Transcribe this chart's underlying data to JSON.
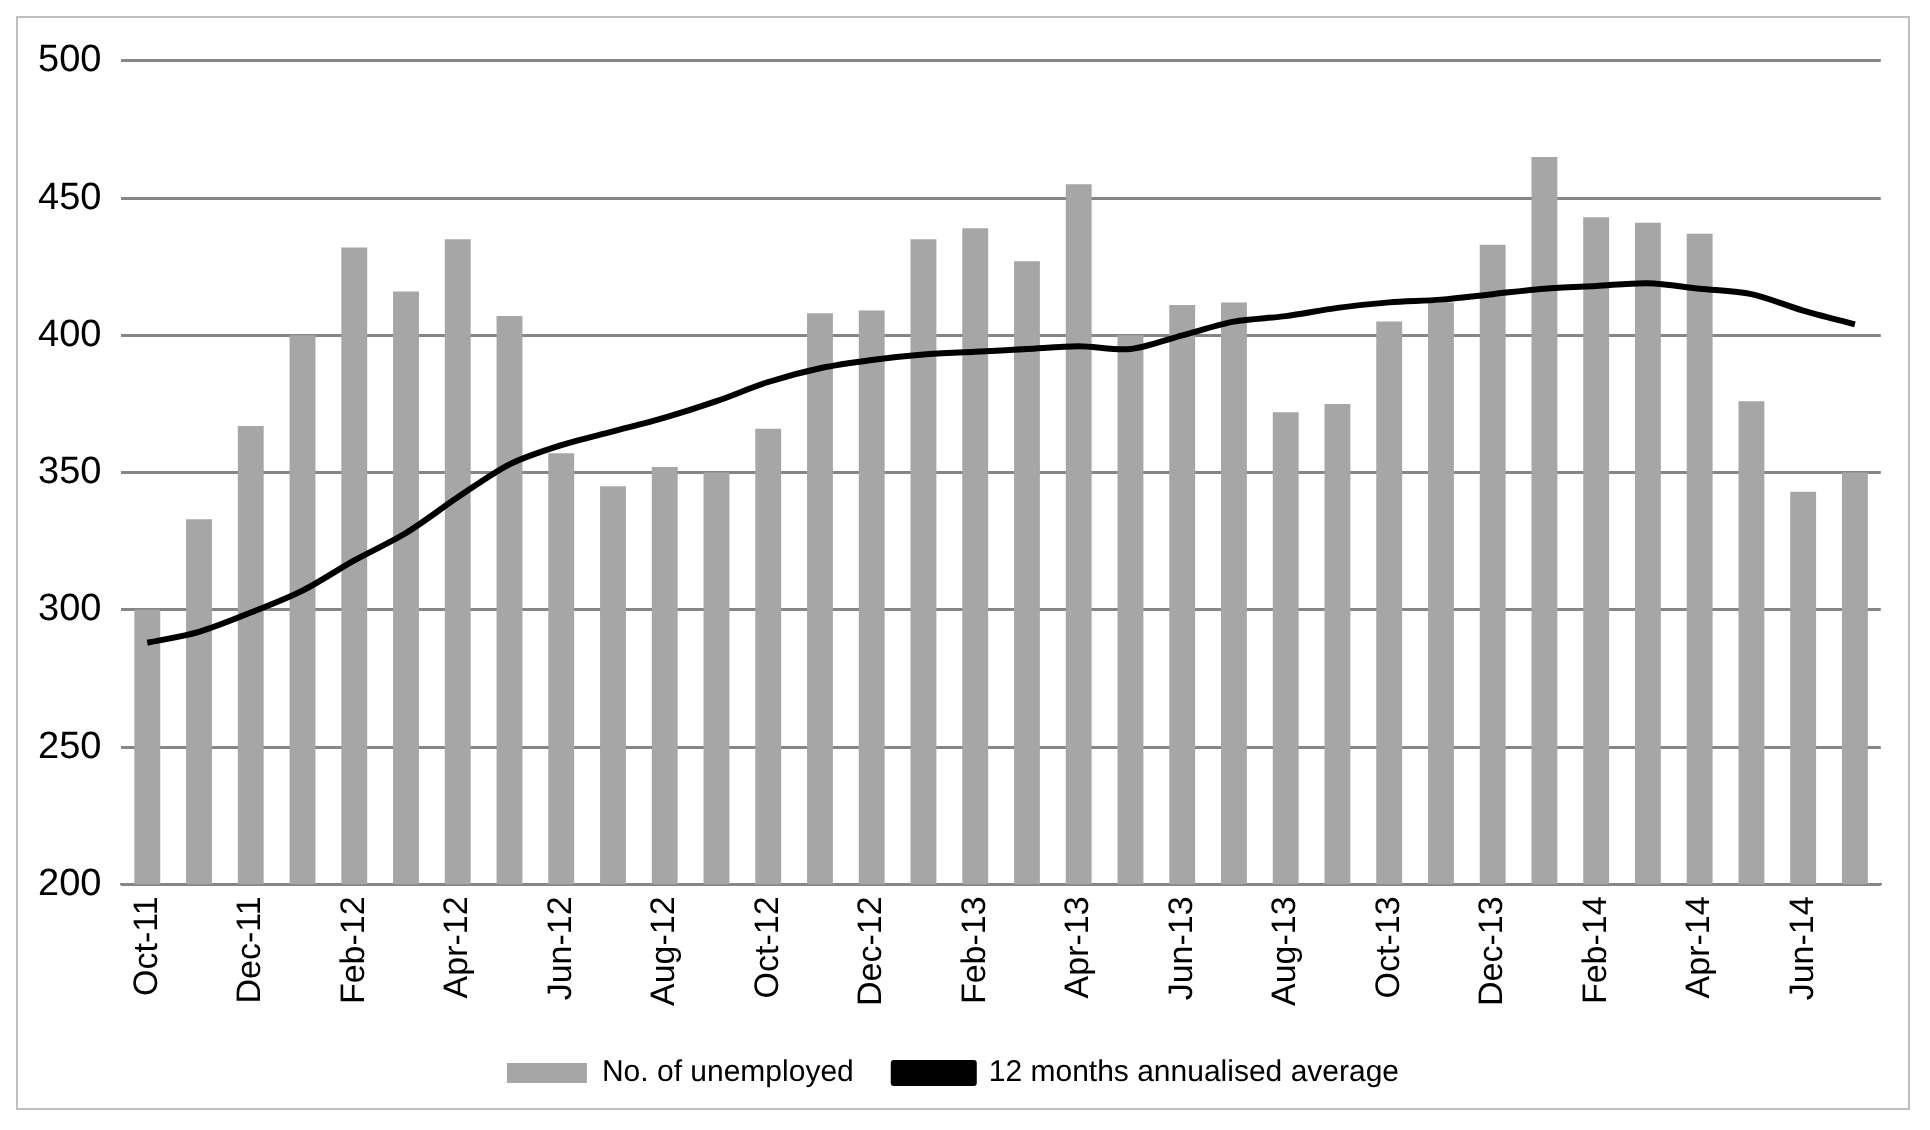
{
  "chart_data": {
    "type": "bar",
    "categories": [
      "Oct-11",
      null,
      "Dec-11",
      null,
      "Feb-12",
      null,
      "Apr-12",
      null,
      "Jun-12",
      null,
      "Aug-12",
      null,
      "Oct-12",
      null,
      "Dec-12",
      null,
      "Feb-13",
      null,
      "Apr-13",
      null,
      "Jun-13",
      null,
      "Aug-13",
      null,
      "Oct-13",
      null,
      "Dec-13",
      null,
      "Feb-14",
      null,
      "Apr-14",
      null,
      "Jun-14",
      null
    ],
    "series": [
      {
        "name": "No. of unemployed",
        "color": "#a6a6a6",
        "values": [
          300,
          333,
          367,
          400,
          432,
          416,
          435,
          407,
          357,
          345,
          352,
          350,
          366,
          408,
          409,
          435,
          439,
          427,
          455,
          400,
          411,
          412,
          372,
          375,
          405,
          412,
          433,
          465,
          443,
          441,
          437,
          376,
          343,
          350
        ]
      },
      {
        "name": "12 months annualised average",
        "type": "line",
        "color": "#000000",
        "values": [
          288,
          292,
          299,
          307,
          318,
          328,
          341,
          353,
          360,
          365,
          370,
          376,
          383,
          388,
          391,
          393,
          394,
          395,
          396,
          395,
          400,
          405,
          407,
          410,
          412,
          413,
          415,
          417,
          418,
          419,
          417,
          415,
          409,
          404
        ]
      }
    ],
    "ylim": [
      200,
      500
    ],
    "yticks": [
      200,
      250,
      300,
      350,
      400,
      450,
      500
    ],
    "grid": "y",
    "legend": "bottom",
    "marker": "none",
    "line_style": "solid"
  }
}
